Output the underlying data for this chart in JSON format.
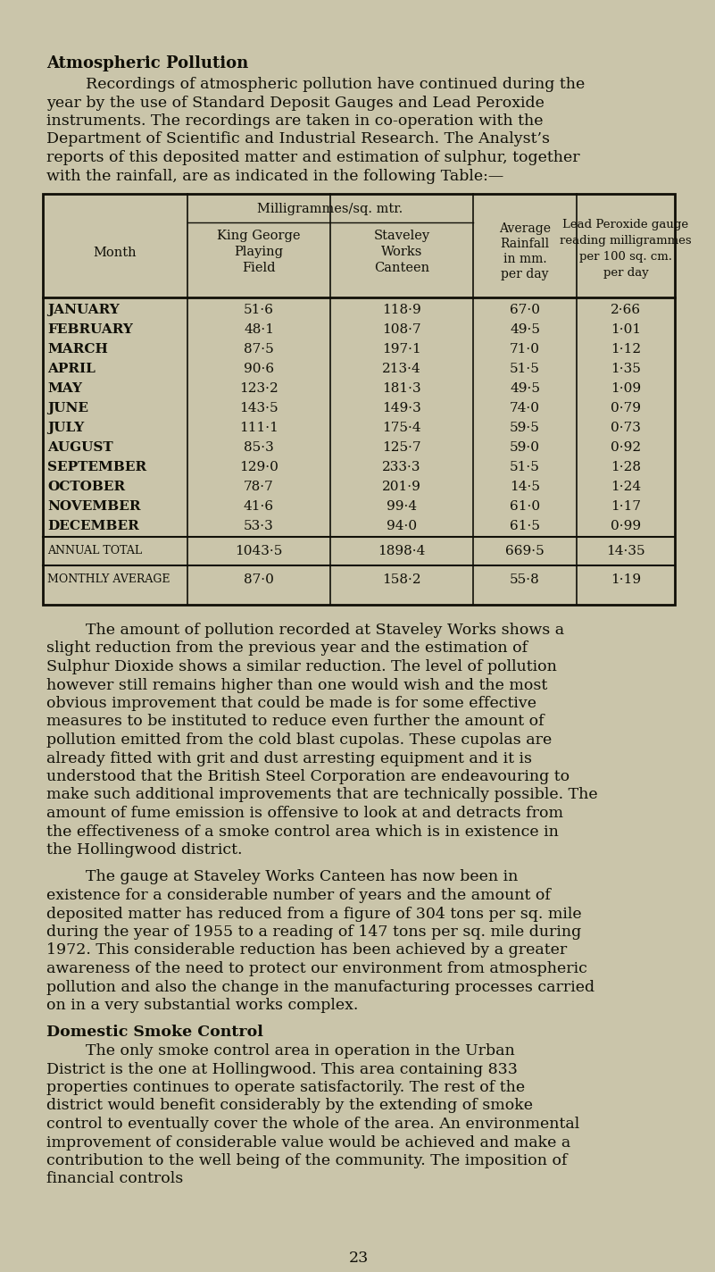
{
  "bg_color": "#cac5aa",
  "text_color": "#111008",
  "title": "Atmospheric Pollution",
  "intro_lines": [
    "        Recordings of atmospheric pollution have continued during the",
    "year by the use of Standard Deposit Gauges and Lead Peroxide",
    "instruments. The recordings are taken in co-operation with the",
    "Department of Scientific and Industrial Research. The Analyst’s",
    "reports of this deposited matter and estimation of sulphur, together",
    "with the rainfall, are as indicated in the following Table:—"
  ],
  "months": [
    "JANUARY",
    "FEBRUARY",
    "MARCH",
    "APRIL",
    "MAY",
    "JUNE",
    "JULY",
    "AUGUST",
    "SEPTEMBER",
    "OCTOBER",
    "NOVEMBER",
    "DECEMBER"
  ],
  "col1": [
    "51·6",
    "48·1",
    "87·5",
    "90·6",
    "123·2",
    "143·5",
    "111·1",
    "85·3",
    "129·0",
    "78·7",
    "41·6",
    "53·3"
  ],
  "col2": [
    "118·9",
    "108·7",
    "197·1",
    "213·4",
    "181·3",
    "149·3",
    "175·4",
    "125·7",
    "233·3",
    "201·9",
    "99·4",
    "94·0"
  ],
  "col3": [
    "67·0",
    "49·5",
    "71·0",
    "51·5",
    "49·5",
    "74·0",
    "59·5",
    "59·0",
    "51·5",
    "14·5",
    "61·0",
    "61·5"
  ],
  "col4": [
    "2·66",
    "1·01",
    "1·12",
    "1·35",
    "1·09",
    "0·79",
    "0·73",
    "0·92",
    "1·28",
    "1·24",
    "1·17",
    "0·99"
  ],
  "annual_label": "ANNUAL TOTAL",
  "annual_vals": [
    "1043·5",
    "1898·4",
    "669·5",
    "14·35"
  ],
  "avg_label": "MONTHLY AVERAGE",
  "avg_vals": [
    "87·0",
    "158·2",
    "55·8",
    "1·19"
  ],
  "para1": "The amount of pollution recorded at Staveley Works shows a slight reduction from the previous year and the estimation of Sulphur Dioxide shows a similar reduction. The level of pollution however still remains higher than one would wish and the most obvious improvement that could be made is for some effective measures to be instituted to reduce even further the amount of pollution emitted from the cold blast cupolas. These cupolas are already fitted with grit and dust arresting equipment and it is understood that the British Steel Corporation are endeavouring to make such additional improvements that are technically possible. The amount of fume emission is offensive to look at and detracts from the effectiveness of a smoke control area which is in existence in the Hollingwood district.",
  "para2": "The gauge at Staveley Works Canteen has now been in existence for a considerable number of years and the amount of deposited matter has reduced from a figure of 304 tons per sq. mile during the year of 1955 to a reading of 147 tons per sq. mile during 1972. This considerable reduction has been achieved by a greater awareness of the need to protect our environment from atmospheric pollution and also the change in the manufacturing processes carried on in a very substantial works complex.",
  "para3_title": "Domestic Smoke Control",
  "para3": "The only smoke control area in operation in the Urban District is the one at Hollingwood. This area containing 833 properties continues to operate satisfactorily. The rest of the district would benefit considerably by the extending of smoke control to eventually cover the whole of the area. An environmental improvement of considerable value would be achieved and make a contribution to the well being of the community. The imposition of financial controls",
  "page_number": "23"
}
